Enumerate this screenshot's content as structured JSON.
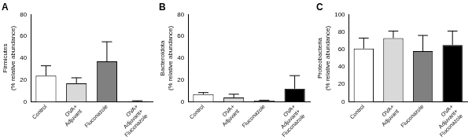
{
  "chart_data": [
    {
      "type": "bar",
      "title": "A",
      "ylabel": [
        "Firmicutes",
        "(% relative abundance)"
      ],
      "categories": [
        "Control",
        "OVA+ Adjuvant",
        "Fluconazole",
        "OVA+ Adjuvant+ Fluconazole"
      ],
      "values": [
        24,
        17,
        37,
        0.5
      ],
      "errors": [
        9,
        5,
        18,
        0.5
      ],
      "colors": [
        "#ffffff",
        "#d9d9d9",
        "#808080",
        "#000000"
      ],
      "ylim": [
        0,
        80
      ],
      "yticks": [
        0,
        20,
        40,
        60,
        80
      ],
      "grid": false
    },
    {
      "type": "bar",
      "title": "B",
      "ylabel": [
        "Bacteroidota",
        "(% relative abundance)"
      ],
      "categories": [
        "Control",
        "OVA+ Adjuvant",
        "Fluconazole",
        "OVA+ Adjuvant+ Fluconazole"
      ],
      "values": [
        7,
        4,
        1,
        12
      ],
      "errors": [
        1.5,
        3,
        0.5,
        12
      ],
      "colors": [
        "#ffffff",
        "#d9d9d9",
        "#808080",
        "#000000"
      ],
      "ylim": [
        0,
        80
      ],
      "yticks": [
        0,
        20,
        40,
        60,
        80
      ],
      "grid": false
    },
    {
      "type": "bar",
      "title": "C",
      "ylabel": [
        "Proteobacteria",
        "(% relative abundance)"
      ],
      "categories": [
        "Control",
        "OVA+ Adjuvant",
        "Fluconazole",
        "OVA+ Adjuvant+ Fluconazole"
      ],
      "values": [
        61,
        73,
        58,
        65
      ],
      "errors": [
        12,
        8,
        18,
        16
      ],
      "colors": [
        "#ffffff",
        "#d9d9d9",
        "#808080",
        "#000000"
      ],
      "ylim": [
        0,
        100
      ],
      "yticks": [
        0,
        20,
        40,
        60,
        80,
        100
      ],
      "grid": false
    }
  ]
}
